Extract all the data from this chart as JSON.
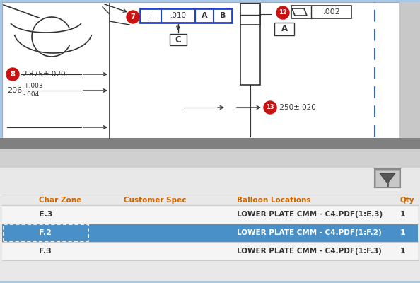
{
  "fig_width": 5.94,
  "fig_height": 4.0,
  "dpi": 100,
  "border_color": "#a8c8e8",
  "balloon_red": "#cc1111",
  "fcf_border": "#2244cc",
  "dashed_line_color": "#3366cc",
  "text_dark": "#222222",
  "text_white": "#ffffff",
  "text_orange": "#cc6600",
  "header_texts": [
    "Char Zone",
    "Customer Spec",
    "Balloon Locations",
    "Qty"
  ],
  "rows": [
    {
      "zone": "E.3",
      "spec": "",
      "location": "LOWER PLATE CMM - C4.PDF(1:E.3)",
      "qty": "1",
      "bg": "#f5f5f5",
      "fg": "#333333"
    },
    {
      "zone": "F.2",
      "spec": "",
      "location": "LOWER PLATE CMM - C4.PDF(1:F.2)",
      "qty": "1",
      "bg": "#4a90c8",
      "fg": "#ffffff"
    },
    {
      "zone": "F.3",
      "spec": "",
      "location": "LOWER PLATE CMM - C4.PDF(1:F.3)",
      "qty": "1",
      "bg": "#f5f5f5",
      "fg": "#333333"
    }
  ]
}
